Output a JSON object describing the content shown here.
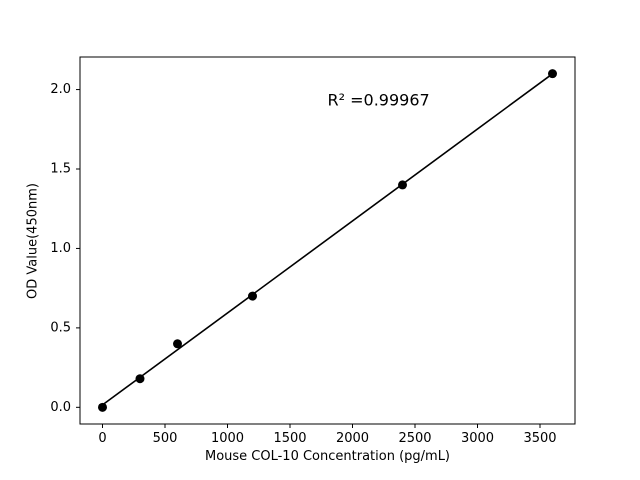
{
  "chart_data": {
    "type": "scatter",
    "title": "",
    "xlabel": "Mouse COL-10 Concentration (pg/mL)",
    "ylabel": "OD Value(450nm)",
    "x": [
      0,
      300,
      600,
      1200,
      2400,
      3600
    ],
    "y": [
      0.0,
      0.18,
      0.4,
      0.7,
      1.4,
      2.1
    ],
    "fit_line": true,
    "annotation": "R² =0.99967",
    "annotation_xy": [
      1800,
      1.93
    ],
    "xticks": [
      0,
      500,
      1000,
      1500,
      2000,
      2500,
      3000,
      3500
    ],
    "yticks": [
      0.0,
      0.5,
      1.0,
      1.5,
      2.0
    ],
    "xlim": [
      -180,
      3780
    ],
    "ylim": [
      -0.105,
      2.205
    ],
    "grid": false,
    "legend": "none",
    "marker_color": "#000000",
    "line_color": "#000000",
    "background_color": "#ffffff"
  }
}
